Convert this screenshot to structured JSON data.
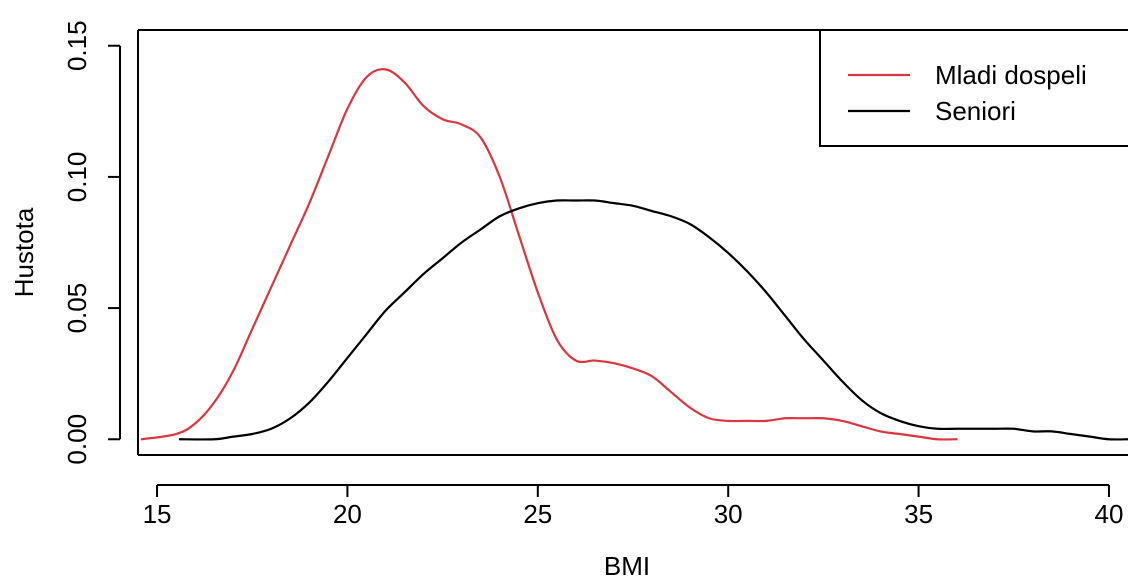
{
  "chart_data": {
    "type": "line",
    "title": "",
    "xlabel": "BMI",
    "ylabel": "Hustota",
    "xlim": [
      14.5,
      40.5
    ],
    "ylim": [
      -0.006,
      0.156
    ],
    "x_ticks": [
      15,
      20,
      25,
      30,
      35,
      40
    ],
    "x_tick_labels": [
      "15",
      "20",
      "25",
      "30",
      "35",
      "40"
    ],
    "y_ticks": [
      0.0,
      0.05,
      0.1,
      0.15
    ],
    "y_tick_labels": [
      "0.00",
      "0.05",
      "0.10",
      "0.15"
    ],
    "grid": false,
    "legend_position": "top-right",
    "colors": {
      "mladi": "#d9363e",
      "seniori": "#000000",
      "axis": "#000000"
    },
    "series": [
      {
        "name": "Mladi dospeli",
        "color": "#d9363e",
        "x": [
          14.6,
          15.5,
          16.0,
          16.5,
          17.0,
          17.5,
          18.0,
          18.5,
          19.0,
          19.5,
          20.0,
          20.5,
          21.0,
          21.5,
          22.0,
          22.5,
          23.0,
          23.5,
          24.0,
          24.5,
          25.0,
          25.5,
          26.0,
          26.5,
          27.0,
          27.5,
          28.0,
          28.5,
          29.0,
          29.5,
          30.0,
          30.5,
          31.0,
          31.5,
          32.0,
          32.5,
          33.0,
          33.5,
          34.0,
          34.5,
          35.0,
          35.5,
          36.0
        ],
        "y": [
          0.0,
          0.002,
          0.006,
          0.014,
          0.026,
          0.042,
          0.058,
          0.074,
          0.09,
          0.108,
          0.126,
          0.138,
          0.141,
          0.136,
          0.127,
          0.122,
          0.12,
          0.115,
          0.1,
          0.078,
          0.056,
          0.038,
          0.03,
          0.03,
          0.029,
          0.027,
          0.024,
          0.018,
          0.012,
          0.008,
          0.007,
          0.007,
          0.007,
          0.008,
          0.008,
          0.008,
          0.007,
          0.005,
          0.003,
          0.002,
          0.001,
          0.0,
          0.0
        ]
      },
      {
        "name": "Seniori",
        "color": "#000000",
        "x": [
          15.6,
          16.5,
          17.0,
          17.5,
          18.0,
          18.5,
          19.0,
          19.5,
          20.0,
          20.5,
          21.0,
          21.5,
          22.0,
          22.5,
          23.0,
          23.5,
          24.0,
          24.5,
          25.0,
          25.5,
          26.0,
          26.5,
          27.0,
          27.5,
          28.0,
          28.5,
          29.0,
          29.5,
          30.0,
          30.5,
          31.0,
          31.5,
          32.0,
          32.5,
          33.0,
          33.5,
          34.0,
          34.5,
          35.0,
          35.5,
          36.0,
          36.5,
          37.0,
          37.5,
          38.0,
          38.5,
          39.0,
          39.5,
          40.0,
          40.5
        ],
        "y": [
          0.0,
          0.0,
          0.001,
          0.002,
          0.004,
          0.008,
          0.014,
          0.022,
          0.031,
          0.04,
          0.049,
          0.056,
          0.063,
          0.069,
          0.075,
          0.08,
          0.085,
          0.088,
          0.09,
          0.091,
          0.091,
          0.091,
          0.09,
          0.089,
          0.087,
          0.085,
          0.082,
          0.077,
          0.071,
          0.064,
          0.056,
          0.047,
          0.038,
          0.03,
          0.022,
          0.015,
          0.01,
          0.007,
          0.005,
          0.004,
          0.004,
          0.004,
          0.004,
          0.004,
          0.003,
          0.003,
          0.002,
          0.001,
          0.0,
          0.0
        ]
      }
    ]
  }
}
